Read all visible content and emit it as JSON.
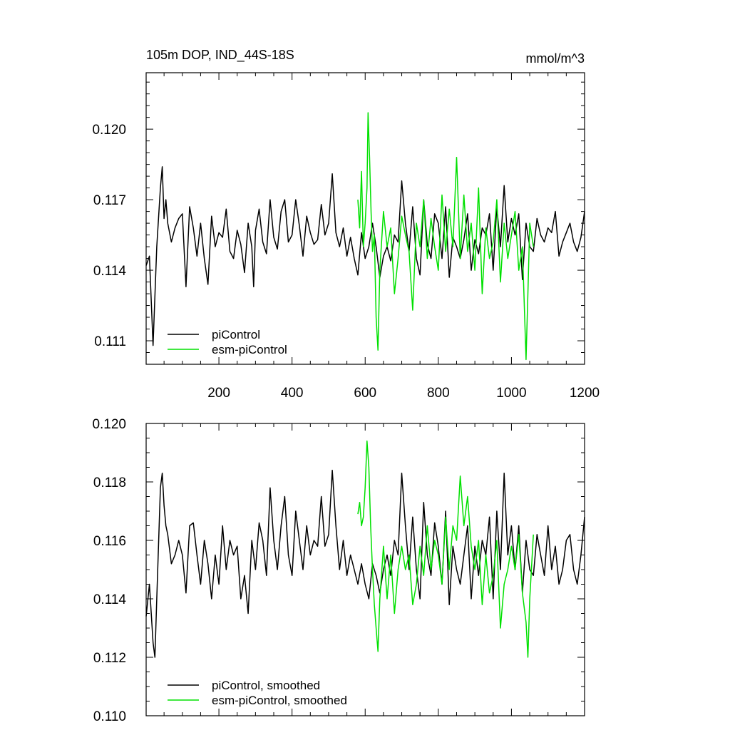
{
  "colors": {
    "piControl": "#000000",
    "esm": "#00e000",
    "frame": "#000000"
  },
  "chart_data": [
    {
      "type": "line",
      "title": "105m DOP, IND_44S-18S",
      "units": "mmol/m^3",
      "xlim": [
        1,
        1200
      ],
      "ylim": [
        0.11,
        0.1224
      ],
      "xticks": [
        200,
        400,
        600,
        800,
        1000,
        1200
      ],
      "xtick_labels": [
        "200",
        "400",
        "600",
        "800",
        "1000",
        "1200"
      ],
      "yticks": [
        0.111,
        0.114,
        0.117,
        0.12
      ],
      "ytick_labels": [
        "0.111",
        "0.114",
        "0.117",
        "0.120"
      ],
      "legend": "bottom-left",
      "series": [
        {
          "name": "piControl",
          "x": [
            1,
            10,
            20,
            30,
            40,
            45,
            50,
            55,
            60,
            70,
            80,
            90,
            100,
            110,
            120,
            130,
            140,
            150,
            160,
            170,
            180,
            190,
            200,
            210,
            220,
            230,
            240,
            250,
            260,
            270,
            280,
            290,
            295,
            300,
            310,
            320,
            330,
            340,
            350,
            360,
            370,
            380,
            390,
            400,
            410,
            420,
            430,
            440,
            450,
            460,
            470,
            480,
            490,
            500,
            510,
            520,
            530,
            540,
            550,
            560,
            570,
            580,
            590,
            600,
            610,
            620,
            630,
            640,
            650,
            660,
            670,
            680,
            690,
            700,
            710,
            720,
            730,
            740,
            750,
            760,
            770,
            780,
            790,
            800,
            810,
            820,
            830,
            840,
            850,
            860,
            870,
            880,
            890,
            900,
            910,
            920,
            930,
            940,
            950,
            960,
            970,
            980,
            990,
            1000,
            1010,
            1020,
            1030,
            1040,
            1050,
            1060,
            1070,
            1080,
            1090,
            1100,
            1110,
            1120,
            1130,
            1140,
            1150,
            1160,
            1170,
            1180,
            1190,
            1200
          ],
          "values": [
            0.1142,
            0.1146,
            0.1108,
            0.115,
            0.1175,
            0.1184,
            0.1162,
            0.117,
            0.116,
            0.1152,
            0.1158,
            0.1162,
            0.1164,
            0.1133,
            0.1167,
            0.1158,
            0.1146,
            0.116,
            0.1145,
            0.1134,
            0.1163,
            0.115,
            0.1156,
            0.1154,
            0.1166,
            0.1148,
            0.1145,
            0.1157,
            0.1151,
            0.1139,
            0.116,
            0.115,
            0.1133,
            0.1157,
            0.1166,
            0.1152,
            0.1147,
            0.117,
            0.1154,
            0.1149,
            0.1165,
            0.117,
            0.1152,
            0.1155,
            0.117,
            0.1159,
            0.1146,
            0.1163,
            0.1156,
            0.1151,
            0.1153,
            0.1168,
            0.1155,
            0.116,
            0.1181,
            0.1156,
            0.115,
            0.1158,
            0.1146,
            0.1154,
            0.1145,
            0.1138,
            0.1156,
            0.1145,
            0.115,
            0.116,
            0.115,
            0.1137,
            0.1146,
            0.115,
            0.1144,
            0.1155,
            0.1152,
            0.1178,
            0.116,
            0.1148,
            0.1167,
            0.1145,
            0.1138,
            0.117,
            0.1151,
            0.1145,
            0.1164,
            0.116,
            0.1145,
            0.1167,
            0.1137,
            0.1154,
            0.115,
            0.1145,
            0.1153,
            0.1164,
            0.114,
            0.1153,
            0.1147,
            0.1158,
            0.1155,
            0.1164,
            0.114,
            0.1167,
            0.115,
            0.1176,
            0.1152,
            0.1162,
            0.1155,
            0.1164,
            0.1136,
            0.116,
            0.115,
            0.1148,
            0.1162,
            0.1155,
            0.1152,
            0.1158,
            0.1156,
            0.1165,
            0.1146,
            0.1152,
            0.1156,
            0.116,
            0.1152,
            0.1148,
            0.1154,
            0.1165
          ]
        },
        {
          "name": "esm-piControl",
          "x": [
            580,
            585,
            590,
            595,
            600,
            605,
            608,
            612,
            616,
            620,
            625,
            630,
            635,
            640,
            650,
            660,
            670,
            680,
            690,
            700,
            710,
            720,
            730,
            740,
            750,
            760,
            770,
            780,
            790,
            800,
            810,
            820,
            830,
            840,
            850,
            860,
            870,
            880,
            890,
            900,
            910,
            920,
            930,
            940,
            950,
            960,
            970,
            980,
            990,
            1000,
            1010,
            1020,
            1030,
            1040,
            1045,
            1050,
            1060
          ],
          "values": [
            0.117,
            0.1158,
            0.1182,
            0.115,
            0.116,
            0.1175,
            0.1207,
            0.1188,
            0.1165,
            0.1148,
            0.1155,
            0.112,
            0.1106,
            0.114,
            0.1165,
            0.115,
            0.1158,
            0.113,
            0.1145,
            0.1163,
            0.1155,
            0.1148,
            0.1123,
            0.116,
            0.115,
            0.117,
            0.1145,
            0.1162,
            0.115,
            0.114,
            0.1172,
            0.1148,
            0.1166,
            0.115,
            0.1188,
            0.1145,
            0.1172,
            0.1148,
            0.116,
            0.114,
            0.1175,
            0.113,
            0.1158,
            0.1145,
            0.1152,
            0.117,
            0.1135,
            0.116,
            0.1145,
            0.1155,
            0.1165,
            0.114,
            0.115,
            0.1102,
            0.113,
            0.116,
            0.115
          ]
        }
      ]
    },
    {
      "type": "line",
      "title": "",
      "xlim": [
        1,
        1200
      ],
      "ylim": [
        0.11,
        0.12
      ],
      "yticks": [
        0.11,
        0.112,
        0.114,
        0.116,
        0.118,
        0.12
      ],
      "ytick_labels": [
        "0.110",
        "0.112",
        "0.114",
        "0.116",
        "0.118",
        "0.120"
      ],
      "legend": "bottom-left",
      "series": [
        {
          "name": "piControl, smoothed",
          "x": [
            1,
            10,
            20,
            25,
            30,
            40,
            45,
            50,
            55,
            60,
            70,
            80,
            90,
            100,
            110,
            120,
            130,
            140,
            150,
            160,
            170,
            180,
            190,
            200,
            210,
            220,
            230,
            240,
            250,
            260,
            270,
            280,
            290,
            300,
            310,
            320,
            330,
            340,
            350,
            360,
            370,
            380,
            390,
            400,
            410,
            420,
            430,
            440,
            450,
            460,
            470,
            480,
            490,
            500,
            510,
            520,
            530,
            540,
            550,
            560,
            570,
            580,
            590,
            600,
            610,
            620,
            630,
            640,
            650,
            660,
            670,
            680,
            690,
            700,
            710,
            720,
            730,
            740,
            750,
            760,
            770,
            780,
            790,
            800,
            810,
            820,
            830,
            840,
            850,
            860,
            870,
            880,
            890,
            900,
            910,
            920,
            930,
            940,
            950,
            960,
            970,
            980,
            990,
            1000,
            1010,
            1020,
            1030,
            1040,
            1050,
            1060,
            1070,
            1080,
            1090,
            1100,
            1110,
            1120,
            1130,
            1140,
            1150,
            1160,
            1170,
            1180,
            1190,
            1200
          ],
          "values": [
            0.1134,
            0.1145,
            0.1125,
            0.112,
            0.114,
            0.1178,
            0.1183,
            0.1172,
            0.1165,
            0.1162,
            0.1152,
            0.1155,
            0.116,
            0.1155,
            0.1142,
            0.1165,
            0.1166,
            0.1155,
            0.1145,
            0.116,
            0.1152,
            0.114,
            0.1155,
            0.1145,
            0.1165,
            0.115,
            0.116,
            0.1155,
            0.1158,
            0.114,
            0.1148,
            0.1135,
            0.116,
            0.115,
            0.1166,
            0.116,
            0.1148,
            0.1178,
            0.116,
            0.115,
            0.1165,
            0.1175,
            0.1155,
            0.1148,
            0.117,
            0.116,
            0.115,
            0.1165,
            0.1155,
            0.116,
            0.1158,
            0.1175,
            0.1158,
            0.1162,
            0.1184,
            0.1165,
            0.115,
            0.116,
            0.1148,
            0.1155,
            0.115,
            0.1145,
            0.1152,
            0.1145,
            0.114,
            0.1152,
            0.1148,
            0.1142,
            0.115,
            0.1155,
            0.1148,
            0.116,
            0.1155,
            0.1183,
            0.1165,
            0.115,
            0.1168,
            0.115,
            0.114,
            0.1173,
            0.1155,
            0.1148,
            0.1166,
            0.1158,
            0.1145,
            0.117,
            0.1138,
            0.1158,
            0.115,
            0.1145,
            0.1155,
            0.1165,
            0.114,
            0.1158,
            0.1148,
            0.116,
            0.1155,
            0.1168,
            0.114,
            0.117,
            0.115,
            0.1183,
            0.1155,
            0.1165,
            0.115,
            0.1165,
            0.1142,
            0.116,
            0.115,
            0.1148,
            0.1162,
            0.1155,
            0.1148,
            0.1165,
            0.115,
            0.1158,
            0.1145,
            0.115,
            0.116,
            0.1162,
            0.115,
            0.1145,
            0.1155,
            0.1168
          ]
        },
        {
          "name": "esm-piControl, smoothed",
          "x": [
            580,
            585,
            590,
            595,
            600,
            605,
            610,
            615,
            620,
            625,
            630,
            635,
            640,
            650,
            660,
            670,
            680,
            690,
            700,
            710,
            720,
            730,
            740,
            750,
            760,
            770,
            780,
            790,
            800,
            810,
            820,
            830,
            840,
            850,
            860,
            870,
            880,
            890,
            900,
            910,
            920,
            930,
            940,
            950,
            960,
            970,
            980,
            990,
            1000,
            1010,
            1020,
            1030,
            1040,
            1045,
            1050,
            1060
          ],
          "values": [
            0.1169,
            0.1173,
            0.1165,
            0.1168,
            0.1178,
            0.1194,
            0.1185,
            0.1165,
            0.115,
            0.1138,
            0.113,
            0.1122,
            0.114,
            0.1158,
            0.114,
            0.1155,
            0.1135,
            0.115,
            0.1158,
            0.115,
            0.1155,
            0.1138,
            0.1145,
            0.1158,
            0.1148,
            0.1165,
            0.115,
            0.116,
            0.1155,
            0.1145,
            0.1168,
            0.115,
            0.1165,
            0.116,
            0.1182,
            0.1165,
            0.1175,
            0.1158,
            0.115,
            0.116,
            0.1138,
            0.1155,
            0.1142,
            0.1148,
            0.116,
            0.113,
            0.1145,
            0.115,
            0.1158,
            0.115,
            0.1162,
            0.1142,
            0.1132,
            0.112,
            0.114,
            0.1162
          ]
        }
      ]
    }
  ]
}
